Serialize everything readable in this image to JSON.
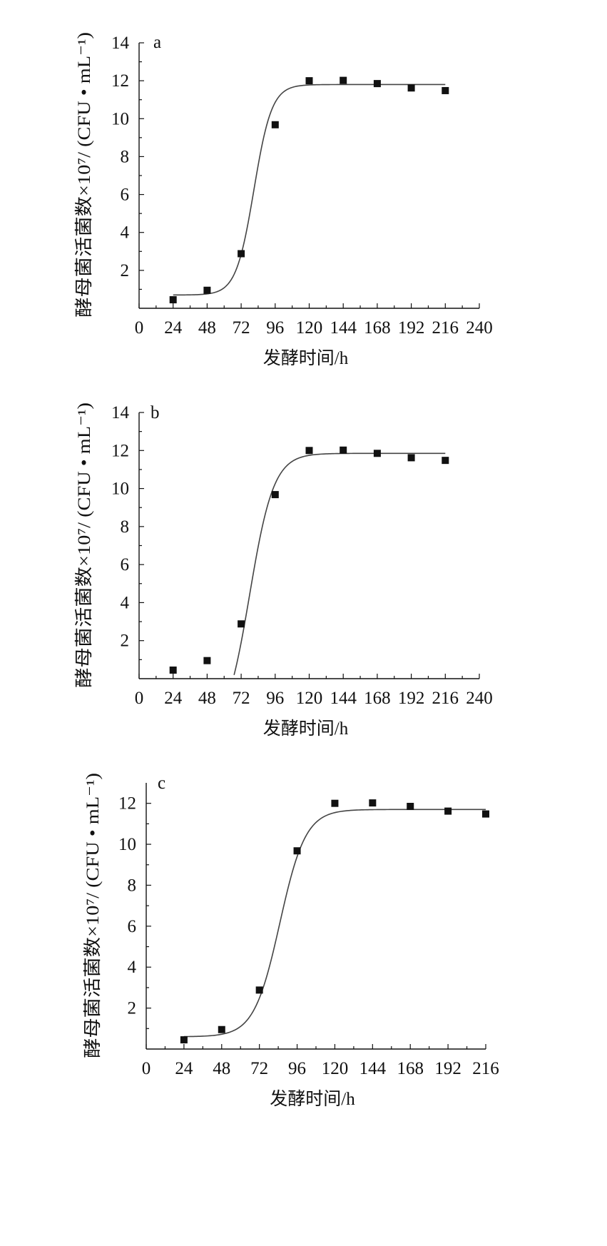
{
  "chart_data": [
    {
      "type": "scatter",
      "panel_label": "a",
      "xlabel": "发酵时间/h",
      "ylabel": "酵母菌活菌数×10⁷/ (CFU • mL⁻¹)",
      "xlim": [
        0,
        240
      ],
      "ylim": [
        0,
        14
      ],
      "x_ticks": [
        "0",
        "24",
        "48",
        "72",
        "96",
        "120",
        "144",
        "168",
        "192",
        "216",
        "240"
      ],
      "y_ticks": [
        "2",
        "4",
        "6",
        "8",
        "10",
        "12",
        "14"
      ],
      "series": [
        {
          "points": [
            [
              24,
              0.45
            ],
            [
              48,
              0.95
            ],
            [
              72,
              2.88
            ],
            [
              96,
              9.68
            ],
            [
              120,
              12.0
            ],
            [
              144,
              12.02
            ],
            [
              168,
              11.85
            ],
            [
              192,
              11.62
            ],
            [
              216,
              11.48
            ]
          ]
        }
      ],
      "fit_curve": {
        "A1": 0.7,
        "A2": 11.8,
        "x0": 81,
        "dx": 6.3,
        "x_range": [
          24,
          216
        ]
      }
    },
    {
      "type": "scatter",
      "panel_label": "b",
      "xlabel": "发酵时间/h",
      "ylabel": "酵母菌活菌数×10⁷/ (CFU • mL⁻¹)",
      "xlim": [
        0,
        240
      ],
      "ylim": [
        0,
        14
      ],
      "x_ticks": [
        "0",
        "24",
        "48",
        "72",
        "96",
        "120",
        "144",
        "168",
        "192",
        "216",
        "240"
      ],
      "y_ticks": [
        "2",
        "4",
        "6",
        "8",
        "10",
        "12",
        "14"
      ],
      "series": [
        {
          "points": [
            [
              24,
              0.45
            ],
            [
              48,
              0.95
            ],
            [
              72,
              2.88
            ],
            [
              96,
              9.68
            ],
            [
              120,
              12.0
            ],
            [
              144,
              12.02
            ],
            [
              168,
              11.85
            ],
            [
              192,
              11.62
            ],
            [
              216,
              11.48
            ]
          ]
        }
      ],
      "fit_curve": {
        "A1": -3,
        "A2": 11.85,
        "x0": 78,
        "dx": 8.5,
        "x_range": [
          58,
          216
        ]
      }
    },
    {
      "type": "scatter",
      "panel_label": "c",
      "xlabel": "发酵时间/h",
      "ylabel": "酵母菌活菌数×10⁷/ (CFU • mL⁻¹)",
      "xlim": [
        0,
        216
      ],
      "ylim": [
        0,
        13
      ],
      "x_ticks": [
        "0",
        "24",
        "48",
        "72",
        "96",
        "120",
        "144",
        "168",
        "192",
        "216"
      ],
      "y_ticks": [
        "2",
        "4",
        "6",
        "8",
        "10",
        "12"
      ],
      "series": [
        {
          "points": [
            [
              24,
              0.45
            ],
            [
              48,
              0.95
            ],
            [
              72,
              2.88
            ],
            [
              96,
              9.68
            ],
            [
              120,
              12.0
            ],
            [
              144,
              12.02
            ],
            [
              168,
              11.85
            ],
            [
              192,
              11.62
            ],
            [
              216,
              11.48
            ]
          ]
        }
      ],
      "fit_curve": {
        "A1": 0.6,
        "A2": 11.7,
        "x0": 85,
        "dx": 8.2,
        "x_range": [
          24,
          216
        ]
      }
    }
  ]
}
